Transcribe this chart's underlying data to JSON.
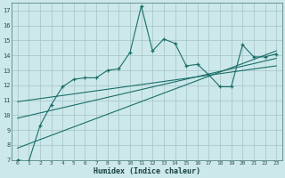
{
  "background_color": "#cce8ea",
  "grid_color": "#adc8cc",
  "line_color": "#1a6e6a",
  "x_label": "Humidex (Indice chaleur)",
  "ylim": [
    7,
    17.5
  ],
  "xlim": [
    -0.5,
    23.5
  ],
  "yticks": [
    7,
    8,
    9,
    10,
    11,
    12,
    13,
    14,
    15,
    16,
    17
  ],
  "xticks": [
    0,
    1,
    2,
    3,
    4,
    5,
    6,
    7,
    8,
    9,
    10,
    11,
    12,
    13,
    14,
    15,
    16,
    17,
    18,
    19,
    20,
    21,
    22,
    23
  ],
  "series_x": [
    0,
    1,
    2,
    3,
    4,
    5,
    6,
    7,
    8,
    9,
    10,
    11,
    12,
    13,
    14,
    15,
    16,
    17,
    18,
    19,
    20,
    21,
    22,
    23
  ],
  "series_y": [
    7.0,
    6.9,
    9.3,
    10.7,
    11.9,
    12.4,
    12.5,
    12.5,
    13.0,
    13.1,
    14.2,
    17.3,
    14.3,
    15.1,
    14.8,
    13.3,
    13.4,
    12.7,
    11.9,
    11.9,
    14.7,
    13.9,
    13.9,
    14.1
  ],
  "trend1_x": [
    0,
    23
  ],
  "trend1_y": [
    7.8,
    14.3
  ],
  "trend2_x": [
    0,
    23
  ],
  "trend2_y": [
    9.8,
    13.8
  ],
  "trend3_x": [
    0,
    23
  ],
  "trend3_y": [
    10.9,
    13.3
  ]
}
